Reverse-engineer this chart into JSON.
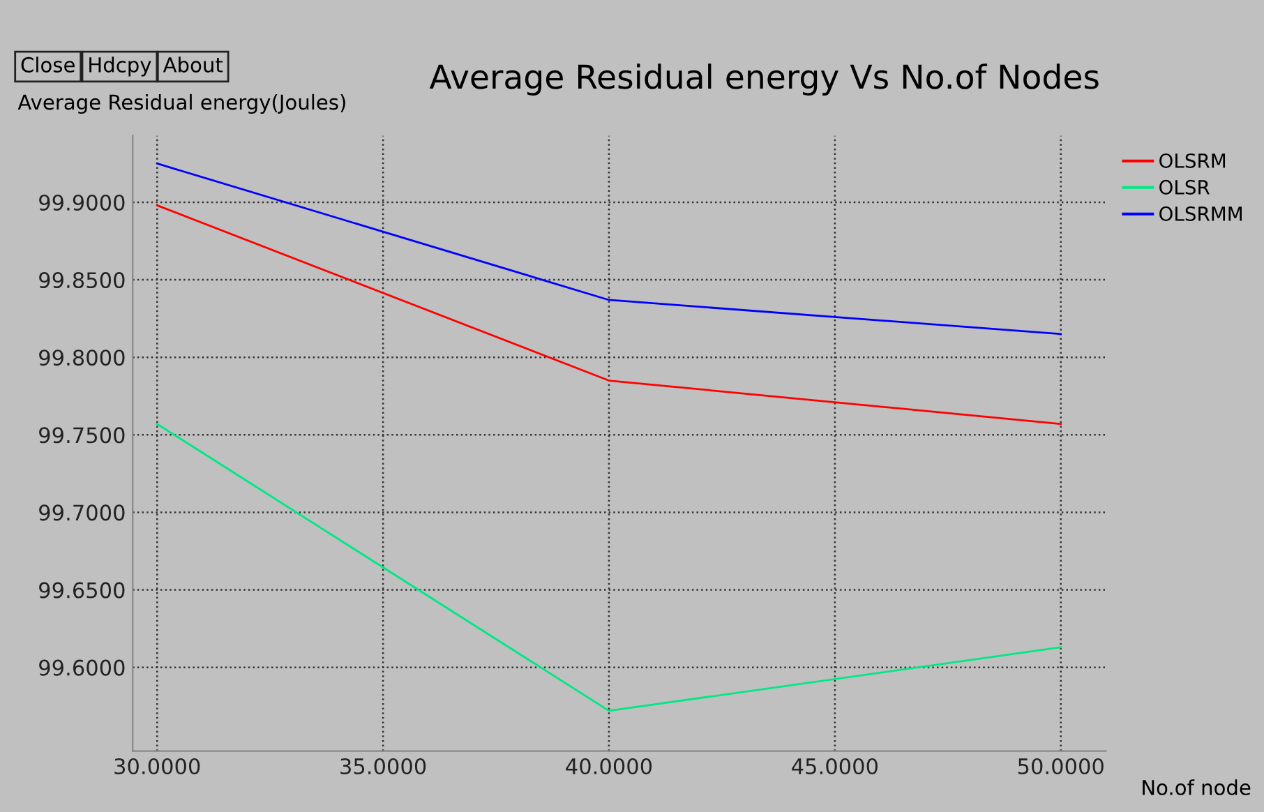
{
  "chart_data": {
    "type": "line",
    "title": "Average Residual energy Vs No.of Nodes",
    "ylabel": "Average Residual energy(Joules)",
    "xlabel": "No.of node",
    "annotations": [
      "Close",
      "Hdcpy",
      "About"
    ],
    "x": [
      30,
      40,
      50
    ],
    "series": [
      {
        "name": "OLSRM",
        "color": "#ff0000",
        "values": [
          99.898,
          99.785,
          99.757
        ]
      },
      {
        "name": "OLSR",
        "color": "#00e884",
        "values": [
          99.757,
          99.572,
          99.613
        ]
      },
      {
        "name": "OLSRMM",
        "color": "#0000ff",
        "values": [
          99.925,
          99.837,
          99.815
        ]
      }
    ],
    "xlim": [
      29.46,
      51.0
    ],
    "ylim": [
      99.546,
      99.943
    ],
    "xticks": [
      {
        "value": 30,
        "label": "30.0000"
      },
      {
        "value": 35,
        "label": "35.0000"
      },
      {
        "value": 40,
        "label": "40.0000"
      },
      {
        "value": 45,
        "label": "45.0000"
      },
      {
        "value": 50,
        "label": "50.0000"
      }
    ],
    "yticks": [
      {
        "value": 99.6,
        "label": "99.6000"
      },
      {
        "value": 99.65,
        "label": "99.6500"
      },
      {
        "value": 99.7,
        "label": "99.7000"
      },
      {
        "value": 99.75,
        "label": "99.7500"
      },
      {
        "value": 99.8,
        "label": "99.8000"
      },
      {
        "value": 99.85,
        "label": "99.8500"
      },
      {
        "value": 99.9,
        "label": "99.9000"
      }
    ],
    "grid": true,
    "legend": "top right",
    "marker": "none",
    "line_style": "solid"
  }
}
